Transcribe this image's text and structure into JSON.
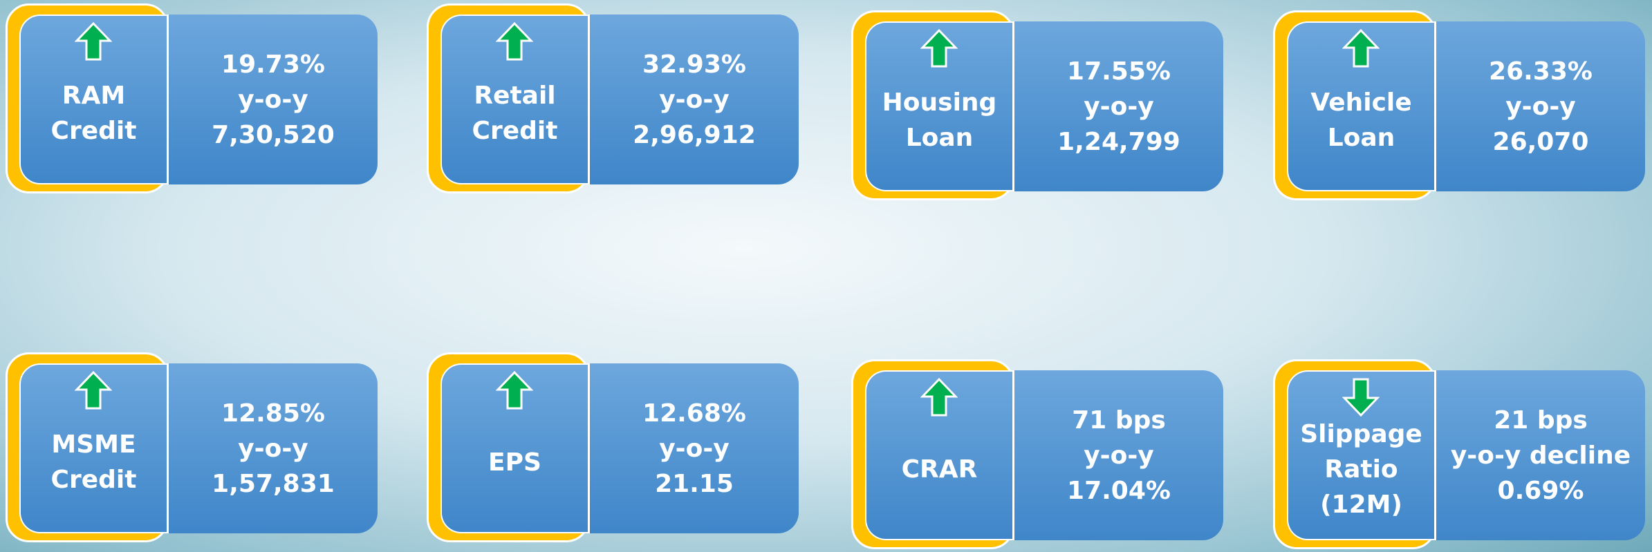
{
  "cards": [
    {
      "label": [
        "RAM",
        "Credit"
      ],
      "direction": "up",
      "lines": [
        "19.73%",
        "y-o-y",
        "7,30,520"
      ]
    },
    {
      "label": [
        "Retail",
        "Credit"
      ],
      "direction": "up",
      "lines": [
        "32.93%",
        "y-o-y",
        "2,96,912"
      ]
    },
    {
      "label": [
        "Housing",
        "Loan"
      ],
      "direction": "up",
      "lines": [
        "17.55%",
        "y-o-y",
        "1,24,799"
      ]
    },
    {
      "label": [
        "Vehicle",
        "Loan"
      ],
      "direction": "up",
      "lines": [
        "26.33%",
        "y-o-y",
        "26,070"
      ]
    },
    {
      "label": [
        "MSME",
        "Credit"
      ],
      "direction": "up",
      "lines": [
        "12.85%",
        "y-o-y",
        "1,57,831"
      ]
    },
    {
      "label": [
        "EPS"
      ],
      "direction": "up",
      "lines": [
        "12.68%",
        "y-o-y",
        "21.15"
      ]
    },
    {
      "label": [
        "CRAR"
      ],
      "direction": "up",
      "lines": [
        "71 bps",
        "y-o-y",
        "17.04%"
      ]
    },
    {
      "label": [
        "Slippage",
        "Ratio",
        "(12M)"
      ],
      "direction": "down",
      "lines": [
        "21 bps",
        "y-o-y decline",
        "0.69%"
      ]
    }
  ]
}
